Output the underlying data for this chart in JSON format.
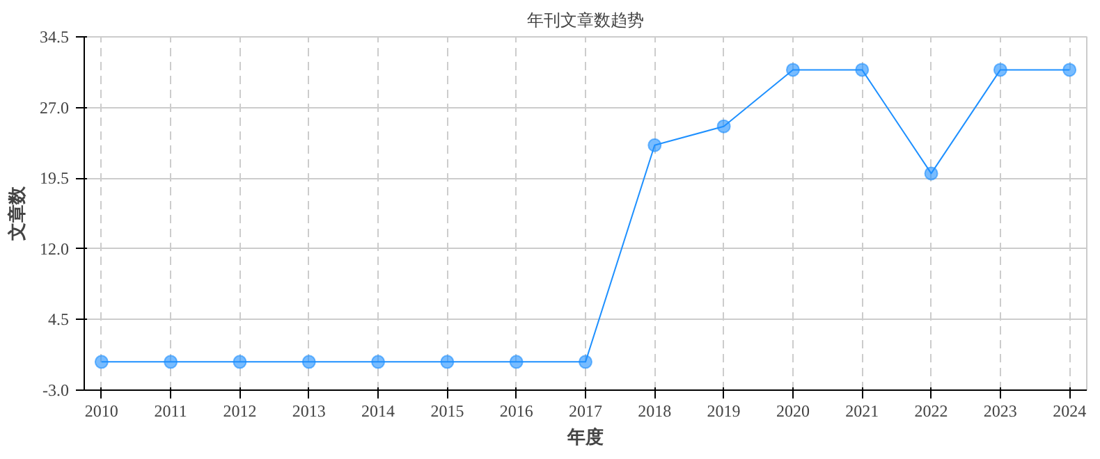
{
  "chart_data": {
    "type": "line",
    "title": "年刊文章数趋势",
    "xlabel": "年度",
    "ylabel": "文章数",
    "categories": [
      "2010",
      "2011",
      "2012",
      "2013",
      "2014",
      "2015",
      "2016",
      "2017",
      "2018",
      "2019",
      "2020",
      "2021",
      "2022",
      "2023",
      "2024"
    ],
    "series": [
      {
        "color": "#1e90ff",
        "values": [
          0,
          0,
          0,
          0,
          0,
          0,
          0,
          0,
          23,
          25,
          31,
          31,
          20,
          31,
          31
        ]
      }
    ],
    "ylim": [
      -3,
      34.5
    ],
    "yticks": [
      {
        "value": -3,
        "label": "-3.0"
      },
      {
        "value": 4.5,
        "label": "4.5"
      },
      {
        "value": 12,
        "label": "12.0"
      },
      {
        "value": 19.5,
        "label": "19.5"
      },
      {
        "value": 27,
        "label": "27.0"
      },
      {
        "value": 34.5,
        "label": "34.5"
      }
    ],
    "grid": true,
    "marker": "circle",
    "line_style": "solid"
  }
}
